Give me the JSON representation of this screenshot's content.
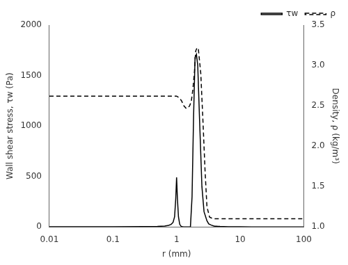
{
  "chart_data": {
    "type": "line",
    "xlabel": "r (mm)",
    "ylabel": "Wall shear stress, τw (Pa)",
    "y2label": "Density, ρ (kg/m³)",
    "log": "x",
    "grid": false,
    "legend": "upper right",
    "xlim": [
      0.01,
      100
    ],
    "xticks": [
      0.01,
      0.1,
      1,
      10,
      100
    ],
    "ylim": [
      0,
      2000
    ],
    "yticks": [
      0,
      500,
      1000,
      1500,
      2000
    ],
    "y2lim": [
      1.0,
      3.5
    ],
    "y2ticks": [
      {
        "value": 1.0,
        "label": "1.0"
      },
      1.5,
      {
        "value": 2.0,
        "label": "2.0"
      },
      2.5,
      {
        "value": 3.0,
        "label": "3.0"
      },
      3.5
    ],
    "series": [
      {
        "name": "τw",
        "color": "#000000",
        "line_style": "solid",
        "x": [
          0.01,
          0.1,
          0.3,
          0.5,
          0.65,
          0.75,
          0.82,
          0.88,
          0.93,
          0.97,
          1.0,
          1.03,
          1.07,
          1.12,
          1.18,
          1.22,
          1.27,
          1.35,
          1.5,
          1.65,
          1.75,
          1.85,
          1.95,
          2.05,
          2.15,
          2.3,
          2.5,
          2.7,
          3.0,
          3.2,
          3.5,
          3.8,
          4.0,
          4.2,
          4.5,
          4.8,
          5.5,
          6.5,
          8.0,
          10.0,
          15.0,
          25.0,
          50.0,
          100.0
        ],
        "values": [
          2,
          2,
          3,
          5,
          8,
          15,
          25,
          45,
          100,
          280,
          490,
          280,
          100,
          25,
          5,
          2,
          1,
          0.5,
          0.5,
          0.5,
          300,
          1100,
          1680,
          1710,
          1600,
          1050,
          400,
          150,
          60,
          30,
          18,
          10,
          7,
          6,
          5,
          4,
          3,
          2,
          1.5,
          1,
          0.5,
          0.3,
          0.1,
          0.05
        ]
      },
      {
        "name": "ρ",
        "color": "#000000",
        "line_style": "dashed",
        "axis": "y2",
        "x": [
          0.01,
          0.1,
          0.3,
          0.5,
          0.7,
          0.9,
          1.0,
          1.1,
          1.2,
          1.3,
          1.4,
          1.5,
          1.6,
          1.7,
          1.8,
          1.9,
          2.0,
          2.1,
          2.2,
          2.4,
          2.6,
          2.8,
          3.0,
          3.3,
          3.8,
          4.5,
          5.0,
          6.0,
          8.0,
          10.0,
          15.0,
          20.0,
          30.0,
          50.0,
          100.0
        ],
        "values": [
          2.62,
          2.62,
          2.62,
          2.62,
          2.62,
          2.62,
          2.62,
          2.6,
          2.56,
          2.5,
          2.47,
          2.47,
          2.5,
          2.55,
          2.7,
          2.9,
          3.18,
          3.22,
          3.2,
          2.9,
          2.3,
          1.7,
          1.25,
          1.12,
          1.1,
          1.1,
          1.1,
          1.1,
          1.1,
          1.1,
          1.1,
          1.1,
          1.1,
          1.1,
          1.1
        ]
      }
    ]
  }
}
